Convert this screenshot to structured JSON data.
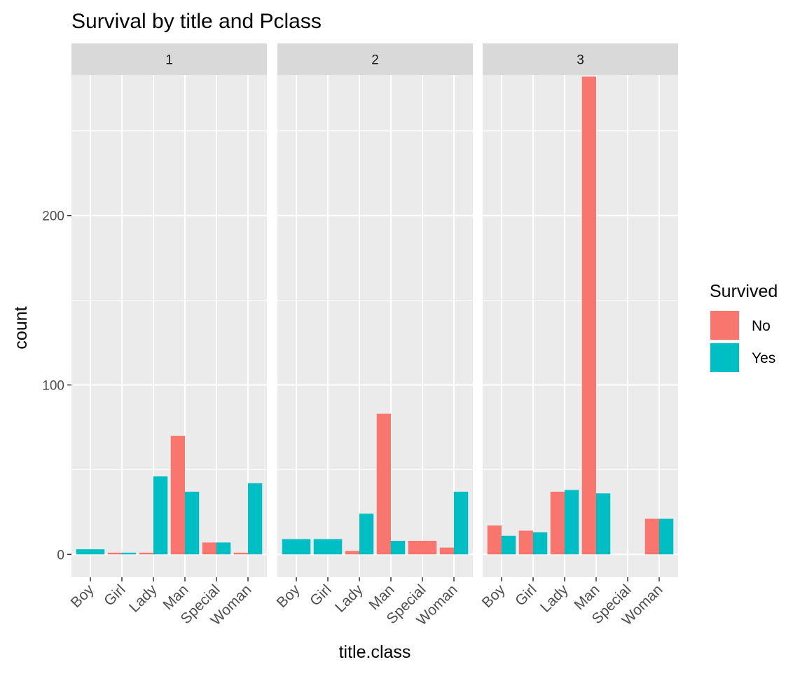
{
  "chart_data": {
    "type": "bar",
    "title": "Survival by title and Pclass",
    "xlabel": "title.class",
    "ylabel": "count",
    "ylim": [
      -13.5,
      283
    ],
    "y_ticks": [
      0,
      100,
      200
    ],
    "y_tick_labels": [
      "0",
      "100",
      "200"
    ],
    "grid": true,
    "categories": [
      "Boy",
      "Girl",
      "Lady",
      "Man",
      "Special",
      "Woman"
    ],
    "legend": {
      "title": "Survived",
      "placement": "right",
      "items": [
        {
          "label": "No",
          "color": "#F8766D"
        },
        {
          "label": "Yes",
          "color": "#00BFC4"
        }
      ]
    },
    "panels": [
      {
        "label": "1",
        "bars": [
          {
            "category": "Boy",
            "series": "Yes",
            "value": 3,
            "dodge": "full"
          },
          {
            "category": "Girl",
            "series": "No",
            "value": 1,
            "dodge": "left"
          },
          {
            "category": "Girl",
            "series": "Yes",
            "value": 1,
            "dodge": "right"
          },
          {
            "category": "Lady",
            "series": "No",
            "value": 1,
            "dodge": "left"
          },
          {
            "category": "Lady",
            "series": "Yes",
            "value": 46,
            "dodge": "right"
          },
          {
            "category": "Man",
            "series": "No",
            "value": 70,
            "dodge": "left"
          },
          {
            "category": "Man",
            "series": "Yes",
            "value": 37,
            "dodge": "right"
          },
          {
            "category": "Special",
            "series": "No",
            "value": 7,
            "dodge": "left"
          },
          {
            "category": "Special",
            "series": "Yes",
            "value": 7,
            "dodge": "right"
          },
          {
            "category": "Woman",
            "series": "No",
            "value": 1,
            "dodge": "left"
          },
          {
            "category": "Woman",
            "series": "Yes",
            "value": 42,
            "dodge": "right"
          }
        ]
      },
      {
        "label": "2",
        "bars": [
          {
            "category": "Boy",
            "series": "Yes",
            "value": 9,
            "dodge": "full"
          },
          {
            "category": "Girl",
            "series": "Yes",
            "value": 9,
            "dodge": "full"
          },
          {
            "category": "Lady",
            "series": "No",
            "value": 2,
            "dodge": "left"
          },
          {
            "category": "Lady",
            "series": "Yes",
            "value": 24,
            "dodge": "right"
          },
          {
            "category": "Man",
            "series": "No",
            "value": 83,
            "dodge": "left"
          },
          {
            "category": "Man",
            "series": "Yes",
            "value": 8,
            "dodge": "right"
          },
          {
            "category": "Special",
            "series": "No",
            "value": 8,
            "dodge": "full"
          },
          {
            "category": "Woman",
            "series": "No",
            "value": 4,
            "dodge": "left"
          },
          {
            "category": "Woman",
            "series": "Yes",
            "value": 37,
            "dodge": "right"
          }
        ]
      },
      {
        "label": "3",
        "bars": [
          {
            "category": "Boy",
            "series": "No",
            "value": 17,
            "dodge": "left"
          },
          {
            "category": "Boy",
            "series": "Yes",
            "value": 11,
            "dodge": "right"
          },
          {
            "category": "Girl",
            "series": "No",
            "value": 14,
            "dodge": "left"
          },
          {
            "category": "Girl",
            "series": "Yes",
            "value": 13,
            "dodge": "right"
          },
          {
            "category": "Lady",
            "series": "No",
            "value": 37,
            "dodge": "left"
          },
          {
            "category": "Lady",
            "series": "Yes",
            "value": 38,
            "dodge": "right"
          },
          {
            "category": "Man",
            "series": "No",
            "value": 282,
            "dodge": "left"
          },
          {
            "category": "Man",
            "series": "Yes",
            "value": 36,
            "dodge": "right"
          },
          {
            "category": "Special",
            "series": "No",
            "value": 0,
            "dodge": "full"
          },
          {
            "category": "Woman",
            "series": "No",
            "value": 21,
            "dodge": "left"
          },
          {
            "category": "Woman",
            "series": "Yes",
            "value": 21,
            "dodge": "right"
          }
        ]
      }
    ]
  }
}
